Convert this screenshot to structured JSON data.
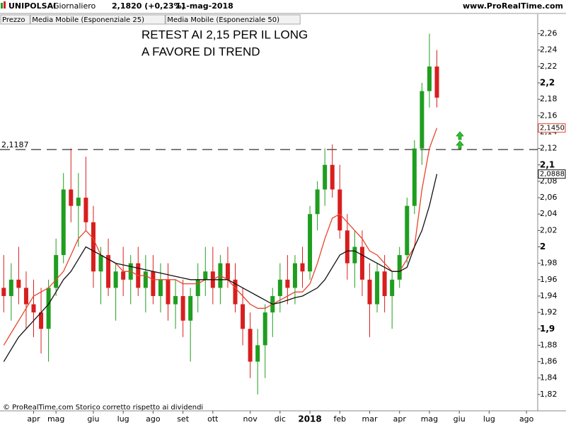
{
  "chart_data": {
    "type": "candlestick",
    "title": "UNIPOLSAI",
    "period": "Giornaliero",
    "last": "2,1820 (+0,23%)",
    "date": "11-mag-2018",
    "source": "www.ProRealTime.com",
    "footer": "© ProRealTime.com  Storico corretto rispetto ai dividendi",
    "annotations": [
      "RETEST AI 2,15 PER IL LONG",
      "A FAVORE DI TREND"
    ],
    "categories": [
      null,
      null,
      null,
      null,
      "apr",
      null,
      null,
      "mag",
      null,
      null,
      null,
      null,
      "giu",
      null,
      null,
      null,
      "lug",
      null,
      null,
      null,
      "ago",
      null,
      null,
      null,
      "set",
      null,
      null,
      null,
      "ott",
      null,
      null,
      null,
      null,
      "nov",
      null,
      null,
      null,
      "dic",
      null,
      null,
      null,
      "2018",
      null,
      null,
      null,
      "feb",
      null,
      null,
      null,
      "mar",
      null,
      null,
      null,
      "apr",
      null,
      null,
      null,
      "mag",
      null,
      null,
      null,
      "giu",
      null,
      null,
      null,
      "lug",
      null,
      null,
      null,
      null,
      "ago",
      null
    ],
    "series": [
      {
        "name": "Prezzo",
        "up_color": "#1f9e1f",
        "down_color": "#d81e1e",
        "open": [
          1.95,
          1.94,
          1.96,
          1.95,
          1.93,
          1.92,
          1.9,
          1.95,
          1.99,
          2.07,
          2.05,
          2.06,
          2.03,
          1.97,
          1.99,
          1.95,
          1.97,
          1.96,
          1.98,
          1.95,
          1.97,
          1.94,
          1.96,
          1.93,
          1.94,
          1.91,
          1.94,
          1.96,
          1.97,
          1.95,
          1.98,
          1.96,
          1.93,
          1.9,
          1.86,
          1.88,
          1.92,
          1.94,
          1.96,
          1.95,
          1.98,
          1.97,
          2.04,
          2.07,
          2.1,
          2.07,
          2.02,
          1.98,
          2.0,
          1.96,
          1.93,
          1.97,
          1.94,
          1.96,
          1.99,
          2.05,
          2.12,
          2.19,
          2.22
        ],
        "high": [
          1.99,
          1.98,
          2.0,
          1.97,
          1.96,
          1.95,
          1.96,
          2.01,
          2.09,
          2.12,
          2.09,
          2.11,
          2.05,
          2.0,
          2.01,
          1.98,
          2.0,
          1.99,
          2.0,
          1.99,
          1.99,
          1.98,
          1.98,
          1.96,
          1.96,
          1.95,
          1.98,
          2.0,
          2.0,
          1.99,
          2.0,
          1.98,
          1.95,
          1.92,
          1.9,
          1.93,
          1.95,
          1.98,
          1.99,
          1.99,
          2.0,
          2.05,
          2.08,
          2.12,
          2.125,
          2.1,
          2.04,
          2.02,
          2.02,
          1.98,
          1.98,
          1.99,
          1.97,
          2.0,
          2.06,
          2.13,
          2.2,
          2.26,
          2.24
        ],
        "low": [
          1.92,
          1.91,
          1.93,
          1.9,
          1.89,
          1.87,
          1.86,
          1.94,
          1.98,
          2.03,
          2.0,
          2.02,
          1.95,
          1.93,
          1.94,
          1.91,
          1.94,
          1.93,
          1.94,
          1.92,
          1.93,
          1.92,
          1.91,
          1.9,
          1.89,
          1.86,
          1.92,
          1.94,
          1.93,
          1.93,
          1.95,
          1.92,
          1.88,
          1.84,
          1.82,
          1.84,
          1.89,
          1.92,
          1.93,
          1.93,
          1.95,
          1.96,
          2.02,
          2.05,
          2.06,
          2.01,
          1.96,
          1.95,
          1.94,
          1.89,
          1.92,
          1.92,
          1.9,
          1.95,
          1.98,
          2.04,
          2.1,
          2.17,
          2.17
        ],
        "close": [
          1.94,
          1.96,
          1.95,
          1.93,
          1.92,
          1.9,
          1.95,
          1.99,
          2.07,
          2.05,
          2.06,
          2.03,
          1.97,
          1.99,
          1.95,
          1.97,
          1.96,
          1.98,
          1.95,
          1.97,
          1.94,
          1.96,
          1.93,
          1.94,
          1.91,
          1.94,
          1.96,
          1.97,
          1.95,
          1.98,
          1.96,
          1.93,
          1.9,
          1.86,
          1.88,
          1.92,
          1.94,
          1.96,
          1.95,
          1.98,
          1.97,
          2.04,
          2.07,
          2.1,
          2.07,
          2.02,
          1.98,
          2.0,
          1.96,
          1.93,
          1.97,
          1.94,
          1.96,
          1.99,
          2.05,
          2.12,
          2.19,
          2.22,
          2.182
        ]
      },
      {
        "name": "Media Mobile (Esponenziale 25)",
        "color": "#e8452c",
        "value_label": "2,1450",
        "values": [
          1.88,
          1.895,
          1.91,
          1.925,
          1.94,
          1.945,
          1.95,
          1.96,
          1.97,
          1.99,
          2.01,
          2.02,
          2.01,
          1.99,
          1.985,
          1.98,
          1.97,
          1.97,
          1.965,
          1.965,
          1.96,
          1.96,
          1.96,
          1.96,
          1.955,
          1.955,
          1.955,
          1.96,
          1.96,
          1.965,
          1.96,
          1.95,
          1.94,
          1.93,
          1.925,
          1.925,
          1.93,
          1.935,
          1.94,
          1.945,
          1.945,
          1.955,
          1.98,
          2.01,
          2.035,
          2.04,
          2.03,
          2.02,
          2.01,
          1.995,
          1.99,
          1.98,
          1.97,
          1.97,
          1.985,
          2.0,
          2.07,
          2.12,
          2.145,
          null,
          null,
          null,
          null,
          null,
          null,
          null,
          null,
          null,
          null,
          null,
          null,
          null
        ]
      },
      {
        "name": "Media Mobile (Esponenziale 50)",
        "color": "#111111",
        "value_label": "2,0888",
        "values": [
          1.86,
          1.875,
          1.89,
          1.9,
          1.91,
          1.92,
          1.93,
          1.945,
          1.96,
          1.97,
          1.985,
          2.0,
          1.995,
          1.99,
          1.985,
          1.98,
          1.978,
          1.976,
          1.974,
          1.972,
          1.97,
          1.968,
          1.966,
          1.964,
          1.962,
          1.96,
          1.96,
          1.96,
          1.96,
          1.96,
          1.96,
          1.955,
          1.95,
          1.945,
          1.94,
          1.935,
          1.93,
          1.932,
          1.935,
          1.938,
          1.94,
          1.945,
          1.95,
          1.96,
          1.975,
          1.99,
          1.995,
          1.995,
          1.99,
          1.985,
          1.98,
          1.975,
          1.97,
          1.97,
          1.975,
          2.0,
          2.02,
          2.05,
          2.0888,
          null,
          null,
          null,
          null,
          null,
          null,
          null,
          null,
          null,
          null,
          null,
          null,
          null
        ]
      }
    ],
    "levels": [
      {
        "value": 2.1187,
        "label": "2,1187"
      }
    ],
    "ylim": [
      1.8,
      2.27
    ],
    "yticks": [
      {
        "value": 1.82,
        "label": "1,82"
      },
      {
        "value": 1.84,
        "label": "1,84"
      },
      {
        "value": 1.86,
        "label": "1,86"
      },
      {
        "value": 1.88,
        "label": "1,88"
      },
      {
        "value": 1.9,
        "label": "1,9"
      },
      {
        "value": 1.92,
        "label": "1,92"
      },
      {
        "value": 1.94,
        "label": "1,94"
      },
      {
        "value": 1.96,
        "label": "1,96"
      },
      {
        "value": 1.98,
        "label": "1,98"
      },
      2,
      {
        "value": 2.02,
        "label": "2,02"
      },
      {
        "value": 2.04,
        "label": "2,04"
      },
      {
        "value": 2.06,
        "label": "2,06"
      },
      {
        "value": 2.08,
        "label": "2,08"
      },
      {
        "value": 2.1,
        "label": "2,1"
      },
      {
        "value": 2.12,
        "label": "2,12"
      },
      {
        "value": 2.14,
        "label": "2,14"
      },
      {
        "value": 2.16,
        "label": "2,16"
      },
      {
        "value": 2.18,
        "label": "2,18"
      },
      {
        "value": 2.2,
        "label": "2,2"
      },
      {
        "value": 2.22,
        "label": "2,22"
      },
      {
        "value": 2.24,
        "label": "2,24"
      },
      {
        "value": 2.26,
        "label": "2,26"
      }
    ]
  }
}
